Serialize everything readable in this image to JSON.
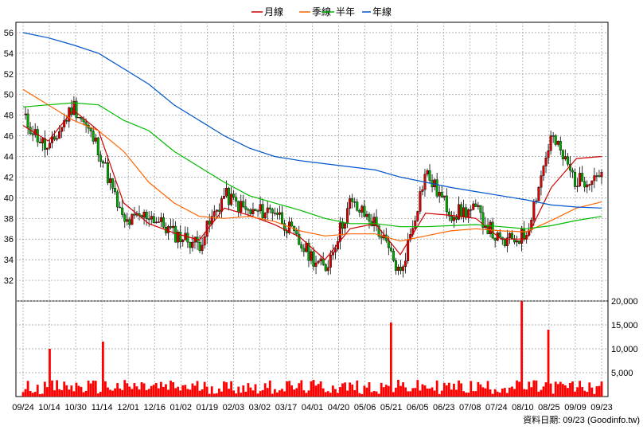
{
  "legend": [
    {
      "label": "月線",
      "color": "#cc0000"
    },
    {
      "label": "季線",
      "color": "#ff6600"
    },
    {
      "label": "半年",
      "color": "#00bb00"
    },
    {
      "label": "年線",
      "color": "#0055cc"
    }
  ],
  "source_label": "資料日期: 09/23  (Goodinfo.tw)",
  "colors": {
    "up": "#dd0000",
    "down": "#00aa00",
    "volume": "#ff0000",
    "grid": "#999999"
  },
  "chart_data": [
    {
      "type": "candlestick",
      "title": "",
      "x_categories": [
        "09/24",
        "10/14",
        "10/30",
        "11/14",
        "12/01",
        "12/16",
        "01/02",
        "01/19",
        "02/03",
        "03/02",
        "03/17",
        "04/01",
        "04/20",
        "05/06",
        "05/21",
        "06/05",
        "06/23",
        "07/08",
        "07/24",
        "08/10",
        "08/25",
        "09/09",
        "09/23"
      ],
      "ylim": [
        30,
        57
      ],
      "y_ticks": [
        32,
        34,
        36,
        38,
        40,
        42,
        44,
        46,
        48,
        50,
        52,
        54,
        56
      ],
      "grid": true,
      "close_approx": [
        [
          "09/24",
          47.8
        ],
        [
          "10/14",
          44.5
        ],
        [
          "10/30",
          49.0
        ],
        [
          "11/14",
          44.8
        ],
        [
          "11/14",
          37.5
        ],
        [
          "12/01",
          38.4
        ],
        [
          "12/16",
          36.5
        ],
        [
          "01/02",
          35.5
        ],
        [
          "01/19",
          40.3
        ],
        [
          "02/03",
          38.5
        ],
        [
          "03/02",
          38.9
        ],
        [
          "03/17",
          35.5
        ],
        [
          "04/01",
          33.0
        ],
        [
          "04/20",
          39.5
        ],
        [
          "05/06",
          37.5
        ],
        [
          "05/21",
          32.5
        ],
        [
          "06/05",
          42.5
        ],
        [
          "06/23",
          38.5
        ],
        [
          "07/08",
          38.8
        ],
        [
          "07/24",
          35.5
        ],
        [
          "08/10",
          36.5
        ],
        [
          "08/25",
          46.0
        ],
        [
          "09/09",
          41.5
        ],
        [
          "09/23",
          42.5
        ]
      ],
      "moving_averages": [
        {
          "name": "月線",
          "values": [
            47.0,
            45.5,
            48.5,
            46.5,
            39.5,
            37.5,
            36.6,
            35.9,
            39.0,
            38.3,
            37.4,
            36.2,
            34.0,
            37.0,
            37.5,
            34.5,
            38.5,
            38.3,
            38.0,
            36.0,
            36.0,
            41.0,
            43.8,
            44.0
          ]
        },
        {
          "name": "季線",
          "values": [
            50.5,
            49.0,
            47.5,
            46.5,
            44.5,
            41.5,
            39.5,
            38.2,
            38.0,
            38.2,
            37.7,
            36.8,
            36.3,
            36.5,
            36.5,
            35.8,
            36.3,
            36.8,
            37.0,
            36.8,
            36.7,
            37.8,
            39.0,
            39.6
          ]
        },
        {
          "name": "半年",
          "values": [
            48.8,
            49.0,
            49.2,
            49.0,
            47.5,
            46.5,
            44.5,
            43.0,
            41.5,
            40.2,
            39.5,
            38.8,
            38.0,
            37.5,
            37.5,
            37.2,
            37.2,
            37.3,
            37.4,
            37.2,
            37.0,
            37.3,
            37.8,
            38.2
          ]
        },
        {
          "name": "年線",
          "values": [
            56.0,
            55.5,
            54.8,
            54.0,
            52.5,
            51.0,
            49.0,
            47.5,
            46.0,
            44.8,
            44.0,
            43.6,
            43.3,
            43.0,
            42.7,
            42.0,
            41.5,
            41.0,
            40.6,
            40.2,
            39.8,
            39.3,
            39.1,
            39.0
          ]
        }
      ]
    },
    {
      "type": "bar",
      "title": "",
      "ylim": [
        0,
        20000
      ],
      "y_ticks": [
        "5,000",
        "10,000",
        "15,000",
        "20,000"
      ],
      "volume_tick_values": [
        5000,
        10000,
        15000,
        20000
      ],
      "x_categories": [
        "09/24",
        "10/14",
        "10/30",
        "11/14",
        "12/01",
        "12/16",
        "01/02",
        "01/19",
        "02/03",
        "03/02",
        "03/17",
        "04/01",
        "04/20",
        "05/06",
        "05/21",
        "06/05",
        "06/23",
        "07/08",
        "07/24",
        "08/10",
        "08/25",
        "09/09",
        "09/23"
      ],
      "notable_volumes": [
        {
          "x": "10/14",
          "value": 10000
        },
        {
          "x": "11/14",
          "value": 11500
        },
        {
          "x": "05/21",
          "value": 15500
        },
        {
          "x": "08/10",
          "value": 20500
        },
        {
          "x": "08/25",
          "value": 14000
        }
      ],
      "typical_volume_range": [
        500,
        3500
      ]
    }
  ]
}
